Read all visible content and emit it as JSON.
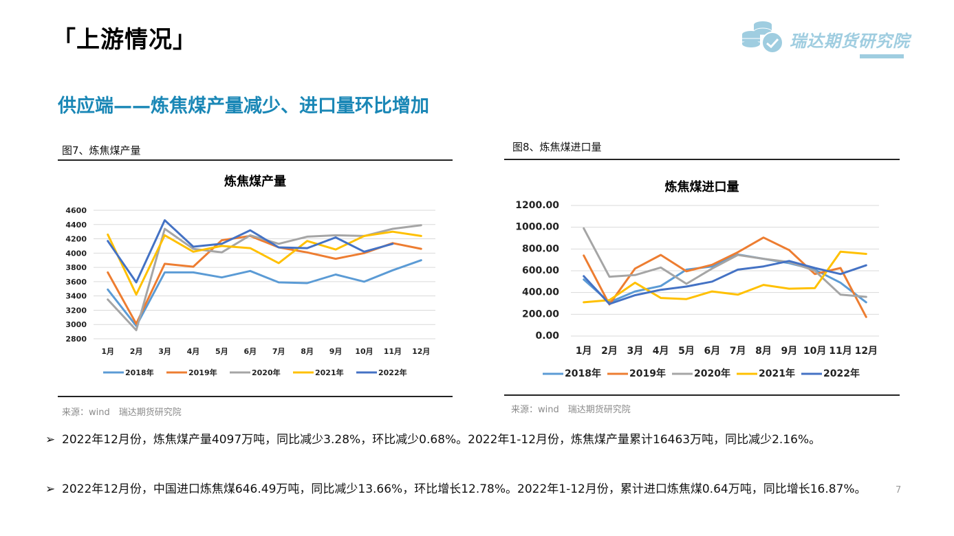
{
  "page": {
    "title": "「上游情况」",
    "subtitle": "供应端——炼焦煤产量减少、进口量环比增加",
    "logo_text": "瑞达期货研究院",
    "page_number": "7"
  },
  "figures": [
    {
      "label": "图7、炼焦煤产量",
      "source": "来源：wind　瑞达期货研究院"
    },
    {
      "label": "图8、炼焦煤进口量",
      "source": "来源：wind　瑞达期货研究院"
    }
  ],
  "bullets": [
    {
      "marker": "➢",
      "text": "2022年12月份，炼焦煤产量4097万吨，同比减少3.28%，环比减少0.68%。2022年1-12月份，炼焦煤产量累计16463万吨，同比减少2.16%。"
    },
    {
      "marker": "➢",
      "text": "2022年12月份，中国进口炼焦煤646.49万吨，同比减少13.66%，环比增长12.78%。2022年1-12月份，累计进口炼焦煤0.64万吨，同比增长16.87%。"
    }
  ],
  "colors": {
    "2018年": "#5b9bd5",
    "2019年": "#ed7d31",
    "2020年": "#a5a5a5",
    "2021年": "#ffc000",
    "2022年": "#4472c4"
  },
  "chart_data": [
    {
      "type": "line",
      "title": "炼焦煤产量",
      "xlabel": "",
      "ylabel": "",
      "categories": [
        "1月",
        "2月",
        "3月",
        "4月",
        "5月",
        "6月",
        "7月",
        "8月",
        "9月",
        "10月",
        "11月",
        "12月"
      ],
      "ylim": [
        2800,
        4600
      ],
      "yticks": [
        "2800",
        "3000",
        "3200",
        "3400",
        "3600",
        "3800",
        "4000",
        "4200",
        "4400",
        "4600"
      ],
      "ytick_values": [
        2800,
        3000,
        3200,
        3400,
        3600,
        3800,
        4000,
        4200,
        4400,
        4600
      ],
      "grid": true,
      "legend": "bottom",
      "series": [
        {
          "name": "2018年",
          "values": [
            3490,
            2980,
            3730,
            3730,
            3660,
            3750,
            3590,
            3580,
            3700,
            3600,
            3760,
            3900
          ]
        },
        {
          "name": "2019年",
          "values": [
            3730,
            3010,
            3850,
            3810,
            4180,
            4240,
            4080,
            4010,
            3920,
            4000,
            4140,
            4060
          ]
        },
        {
          "name": "2020年",
          "values": [
            3350,
            2920,
            4340,
            4060,
            4010,
            4250,
            4130,
            4230,
            4250,
            4240,
            4340,
            4390
          ]
        },
        {
          "name": "2021年",
          "values": [
            4260,
            3420,
            4250,
            4020,
            4100,
            4070,
            3860,
            4170,
            4050,
            4240,
            4300,
            4240
          ]
        },
        {
          "name": "2022年",
          "values": [
            4170,
            3590,
            4460,
            4090,
            4130,
            4320,
            4080,
            4070,
            4220,
            4020,
            4130,
            null
          ]
        }
      ]
    },
    {
      "type": "line",
      "title": "炼焦煤进口量",
      "xlabel": "",
      "ylabel": "",
      "categories": [
        "1月",
        "2月",
        "3月",
        "4月",
        "5月",
        "6月",
        "7月",
        "8月",
        "9月",
        "10月",
        "11月",
        "12月"
      ],
      "ylim": [
        0,
        1200
      ],
      "yticks": [
        "0.00",
        "200.00",
        "400.00",
        "600.00",
        "800.00",
        "1000.00",
        "1200.00"
      ],
      "ytick_values": [
        0,
        200,
        400,
        600,
        800,
        1000,
        1200
      ],
      "grid": true,
      "legend": "bottom",
      "series": [
        {
          "name": "2018年",
          "values": [
            520,
            310,
            410,
            460,
            610,
            640,
            750,
            710,
            670,
            610,
            490,
            310
          ]
        },
        {
          "name": "2019年",
          "values": [
            740,
            290,
            620,
            745,
            595,
            655,
            770,
            905,
            790,
            570,
            625,
            175
          ]
        },
        {
          "name": "2020年",
          "values": [
            990,
            545,
            560,
            630,
            480,
            620,
            745,
            710,
            680,
            600,
            380,
            360
          ]
        },
        {
          "name": "2021年",
          "values": [
            310,
            330,
            490,
            350,
            340,
            410,
            380,
            470,
            435,
            440,
            775,
            755
          ]
        },
        {
          "name": "2022年",
          "values": [
            550,
            295,
            375,
            425,
            455,
            500,
            610,
            640,
            690,
            625,
            570,
            650
          ]
        }
      ]
    }
  ]
}
